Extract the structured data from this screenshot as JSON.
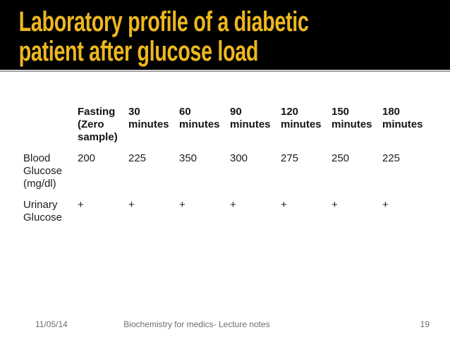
{
  "title": {
    "line1": "Laboratory profile of a diabetic",
    "line2": "patient after glucose load"
  },
  "colors": {
    "title_text": "#EDB71F",
    "title_bar_background": "#000000",
    "underline": "#a3a3a3",
    "body_text": "#1c1c1c",
    "footer_text": "#6d6d6d"
  },
  "table": {
    "column_headers": [
      "",
      "Fasting (Zero sample)",
      "30 minutes",
      "60 minutes",
      "90 minutes",
      "120 minutes",
      "150 minutes",
      "180 minutes"
    ],
    "rows": [
      {
        "label": "Blood Glucose (mg/dl)",
        "values": [
          "200",
          "225",
          "350",
          "300",
          "275",
          "250",
          "225"
        ]
      },
      {
        "label": "Urinary Glucose",
        "values": [
          "+",
          "+",
          "+",
          "+",
          "+",
          "+",
          "+"
        ]
      }
    ]
  },
  "footer": {
    "date": "11/05/14",
    "center": "Biochemistry for medics- Lecture notes",
    "page_number": "19"
  }
}
